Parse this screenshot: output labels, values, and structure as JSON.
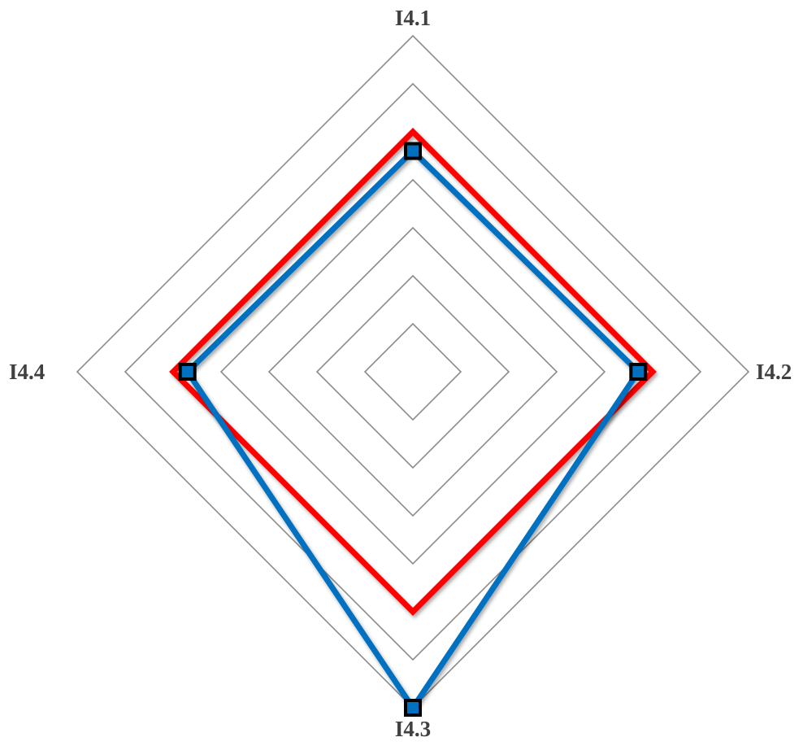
{
  "chart_data": {
    "type": "radar",
    "axes": [
      "I4.1",
      "I4.2",
      "I4.3",
      "I4.4"
    ],
    "rmin": 0,
    "rmax": 7,
    "grid_levels": [
      1,
      2,
      3,
      4,
      5,
      6,
      7
    ],
    "grid": true,
    "legend": "none",
    "series": [
      {
        "color": "#ff0000",
        "values": [
          5,
          5,
          5,
          5
        ],
        "markers": false
      },
      {
        "color": "#0070c0",
        "marker_fill": "#0070c0",
        "marker_edge": "#000000",
        "values": [
          4.6,
          4.7,
          7,
          4.7
        ],
        "markers": true
      }
    ]
  }
}
